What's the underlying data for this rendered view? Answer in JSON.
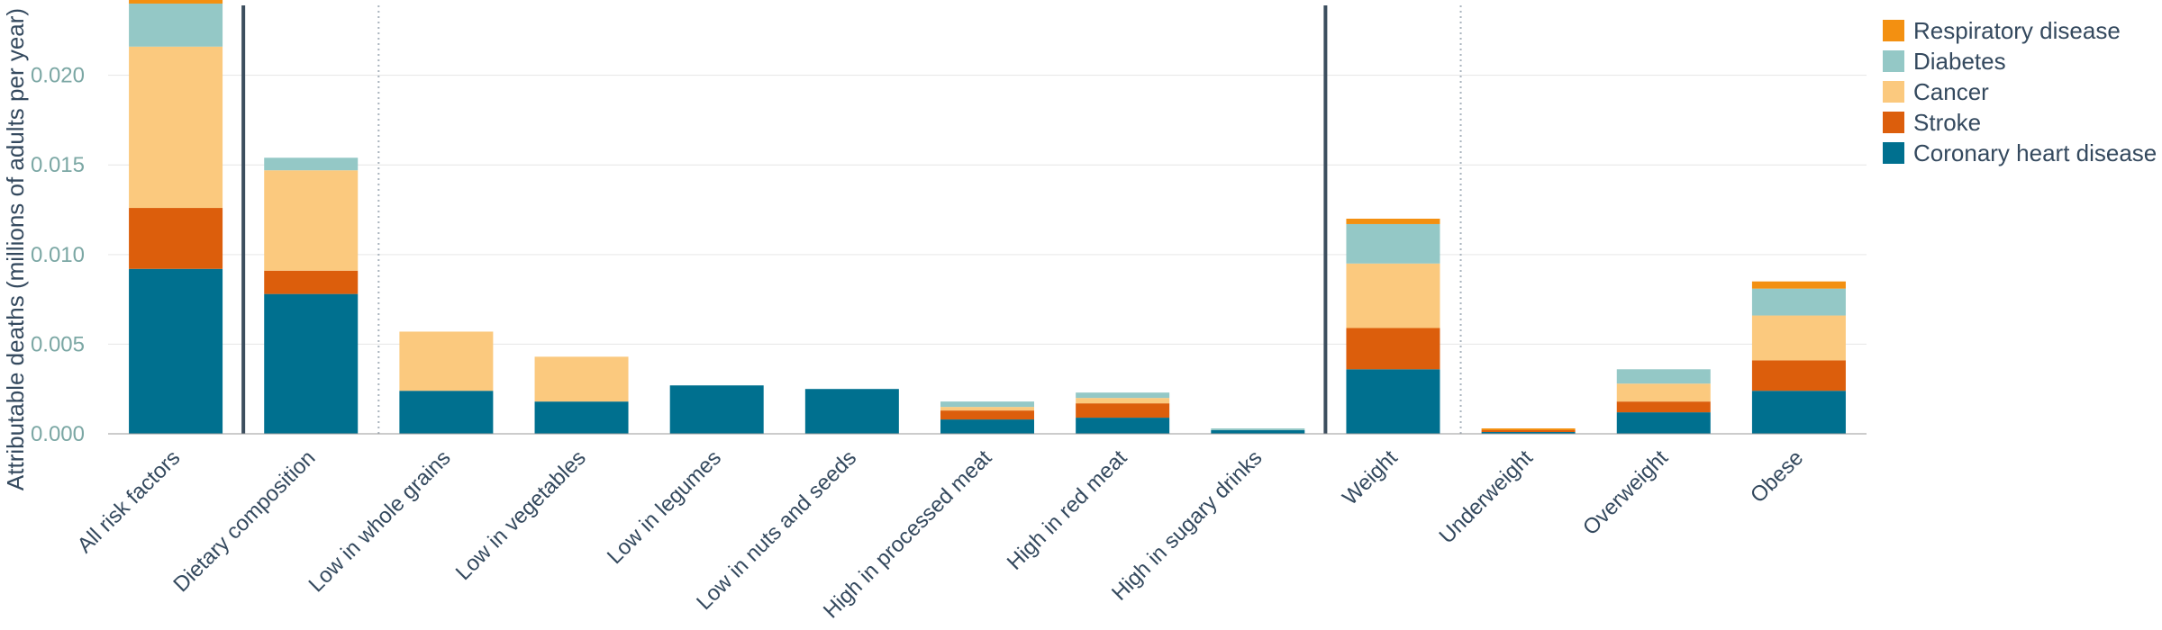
{
  "chart_data": {
    "type": "bar",
    "stacked": true,
    "ylabel": "Attributable deaths (millions of adults per year)",
    "xlabel": "",
    "ylim": [
      0,
      0.0242
    ],
    "yticks": [
      "0.000",
      "0.005",
      "0.010",
      "0.015",
      "0.020"
    ],
    "ytick_values": [
      0,
      0.005,
      0.01,
      0.015,
      0.02
    ],
    "grid": true,
    "legend_position": "right",
    "categories": [
      "All risk factors",
      "Dietary composition",
      "Low in whole grains",
      "Low in vegetables",
      "Low in legumes",
      "Low in nuts and seeds",
      "High in processed meat",
      "High in red meat",
      "High in sugary drinks",
      "Weight",
      "Underweight",
      "Overweight",
      "Obese"
    ],
    "group_separators": [
      {
        "after_index": 0,
        "style": "solid"
      },
      {
        "after_index": 1,
        "style": "dotted"
      },
      {
        "after_index": 8,
        "style": "solid"
      },
      {
        "after_index": 9,
        "style": "dotted"
      }
    ],
    "series": [
      {
        "name": "Coronary heart disease",
        "color": "#00708f",
        "values": [
          0.0092,
          0.0078,
          0.0024,
          0.0018,
          0.0027,
          0.0025,
          0.0008,
          0.0009,
          0.0002,
          0.0036,
          0.0001,
          0.0012,
          0.0024
        ]
      },
      {
        "name": "Stroke",
        "color": "#dc5e0c",
        "values": [
          0.0034,
          0.0013,
          0.0,
          0.0,
          0.0,
          0.0,
          0.0005,
          0.0008,
          0.0,
          0.0023,
          0.0001,
          0.0006,
          0.0017
        ]
      },
      {
        "name": "Cancer",
        "color": "#fbc97e",
        "values": [
          0.009,
          0.0056,
          0.0033,
          0.0025,
          0.0,
          0.0,
          0.0002,
          0.0003,
          0.0,
          0.0036,
          0.0,
          0.001,
          0.0025
        ]
      },
      {
        "name": "Diabetes",
        "color": "#94c8c6",
        "values": [
          0.0024,
          0.0007,
          0.0,
          0.0,
          0.0,
          0.0,
          0.0003,
          0.0003,
          0.0001,
          0.0022,
          0.0,
          0.0008,
          0.0015
        ]
      },
      {
        "name": "Respiratory disease",
        "color": "#f39011",
        "values": [
          0.0003,
          0.0,
          0.0,
          0.0,
          0.0,
          0.0,
          0.0,
          0.0,
          0.0,
          0.0003,
          0.0001,
          0.0,
          0.0004
        ]
      }
    ],
    "legend_order": [
      "Respiratory disease",
      "Diabetes",
      "Cancer",
      "Stroke",
      "Coronary heart disease"
    ]
  }
}
